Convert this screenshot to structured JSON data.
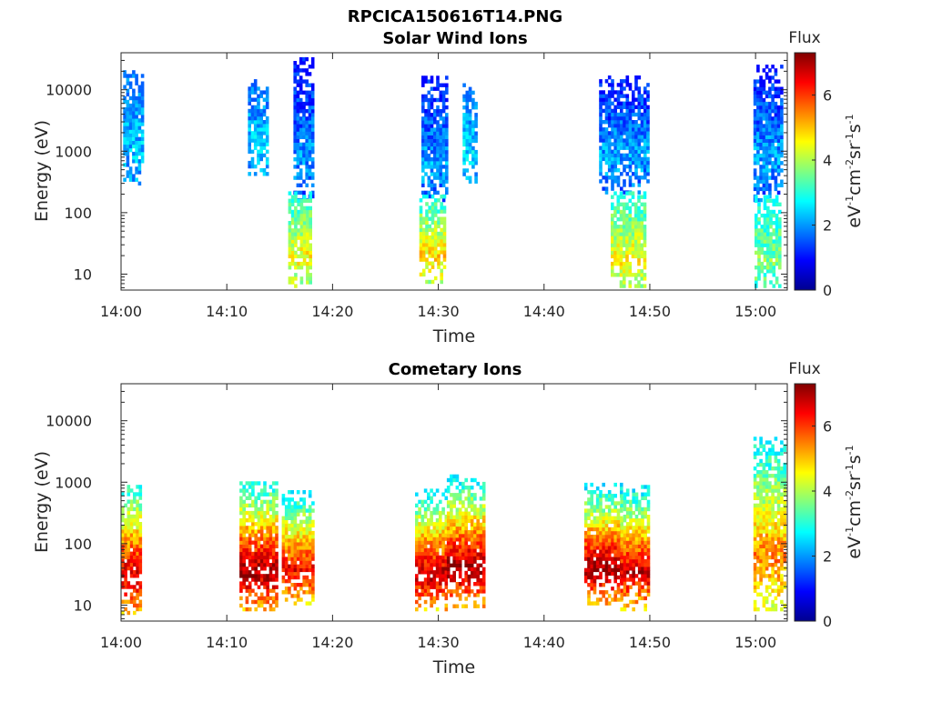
{
  "figure_title": "RPCICA150616T14.PNG",
  "colormap": [
    "#00008f",
    "#0000ff",
    "#0080ff",
    "#00ffff",
    "#80ff80",
    "#ffff00",
    "#ff8000",
    "#ff0000",
    "#800000"
  ],
  "chart_data": [
    {
      "type": "heatmap",
      "title": "Solar Wind Ions",
      "xlabel": "Time",
      "ylabel": "Energy (eV)",
      "yscale": "log",
      "ylim": [
        5.5,
        40000
      ],
      "xlim": [
        840,
        903
      ],
      "xticks": [
        840,
        850,
        860,
        870,
        880,
        890,
        900
      ],
      "xticklabels": [
        "14:00",
        "14:10",
        "14:20",
        "14:30",
        "14:40",
        "14:50",
        "15:00"
      ],
      "yticks": [
        10,
        100,
        1000,
        10000
      ],
      "yticklabels": [
        "10",
        "100",
        "1000",
        "10000"
      ],
      "colorbar": {
        "label": "Flux",
        "units": "eV-1cm-2sr-1s-1",
        "range": [
          0,
          7.3
        ],
        "ticks": [
          "0",
          "2",
          "4",
          "6"
        ],
        "tick_values": [
          0,
          2,
          4,
          6
        ]
      },
      "clusters": [
        {
          "t0": 840.2,
          "t1": 841.9,
          "e0": 280,
          "e1": 20000,
          "lmin": 1.6,
          "lmax": 2.3
        },
        {
          "t0": 852.0,
          "t1": 853.8,
          "e0": 400,
          "e1": 14000,
          "lmin": 1.5,
          "lmax": 2.4
        },
        {
          "t0": 856.3,
          "t1": 858.2,
          "e0": 150,
          "e1": 30000,
          "lmin": 0.9,
          "lmax": 2.0
        },
        {
          "t0": 855.8,
          "t1": 857.8,
          "e0": 6,
          "e1": 200,
          "lmin": 2.8,
          "lmax": 4.6
        },
        {
          "t0": 868.4,
          "t1": 870.8,
          "e0": 150,
          "e1": 15000,
          "lmin": 0.9,
          "lmax": 2.1
        },
        {
          "t0": 868.2,
          "t1": 870.6,
          "e0": 7,
          "e1": 180,
          "lmin": 2.8,
          "lmax": 4.8
        },
        {
          "t0": 872.3,
          "t1": 873.6,
          "e0": 300,
          "e1": 12000,
          "lmin": 1.6,
          "lmax": 2.4
        },
        {
          "t0": 885.2,
          "t1": 889.8,
          "e0": 200,
          "e1": 15000,
          "lmin": 0.9,
          "lmax": 2.1
        },
        {
          "t0": 886.3,
          "t1": 889.4,
          "e0": 6,
          "e1": 200,
          "lmin": 2.8,
          "lmax": 4.6
        },
        {
          "t0": 899.8,
          "t1": 902.4,
          "e0": 150,
          "e1": 25000,
          "lmin": 0.9,
          "lmax": 2.1
        },
        {
          "t0": 899.9,
          "t1": 902.2,
          "e0": 6,
          "e1": 180,
          "lmin": 2.7,
          "lmax": 3.6
        }
      ]
    },
    {
      "type": "heatmap",
      "title": "Cometary Ions",
      "xlabel": "Time",
      "ylabel": "Energy (eV)",
      "yscale": "log",
      "ylim": [
        5.5,
        40000
      ],
      "xlim": [
        840,
        903
      ],
      "xticks": [
        840,
        850,
        860,
        870,
        880,
        890,
        900
      ],
      "xticklabels": [
        "14:00",
        "14:10",
        "14:20",
        "14:30",
        "14:40",
        "14:50",
        "15:00"
      ],
      "yticks": [
        10,
        100,
        1000,
        10000
      ],
      "yticklabels": [
        "10",
        "100",
        "1000",
        "10000"
      ],
      "colorbar": {
        "label": "Flux",
        "units": "eV-1cm-2sr-1s-1",
        "range": [
          0,
          7.3
        ],
        "ticks": [
          "0",
          "2",
          "4",
          "6"
        ],
        "tick_values": [
          0,
          2,
          4,
          6
        ]
      },
      "clusters": [
        {
          "t0": 840.0,
          "t1": 841.9,
          "e0": 7,
          "e1": 900,
          "lmin": 2.6,
          "lmax": 6.8
        },
        {
          "t0": 851.2,
          "t1": 854.8,
          "e0": 8,
          "e1": 1000,
          "lmin": 2.6,
          "lmax": 7.1
        },
        {
          "t0": 855.2,
          "t1": 858.2,
          "e0": 10,
          "e1": 700,
          "lmin": 2.4,
          "lmax": 6.5
        },
        {
          "t0": 867.8,
          "t1": 870.8,
          "e0": 8,
          "e1": 700,
          "lmin": 2.5,
          "lmax": 6.9
        },
        {
          "t0": 870.8,
          "t1": 874.2,
          "e0": 9,
          "e1": 1200,
          "lmin": 2.4,
          "lmax": 7.1
        },
        {
          "t0": 883.8,
          "t1": 887.2,
          "e0": 10,
          "e1": 900,
          "lmin": 2.3,
          "lmax": 7.2
        },
        {
          "t0": 887.2,
          "t1": 889.9,
          "e0": 8,
          "e1": 900,
          "lmin": 2.3,
          "lmax": 6.8
        },
        {
          "t0": 899.8,
          "t1": 902.6,
          "e0": 8,
          "e1": 5000,
          "lmin": 2.5,
          "lmax": 5.5
        }
      ]
    }
  ]
}
